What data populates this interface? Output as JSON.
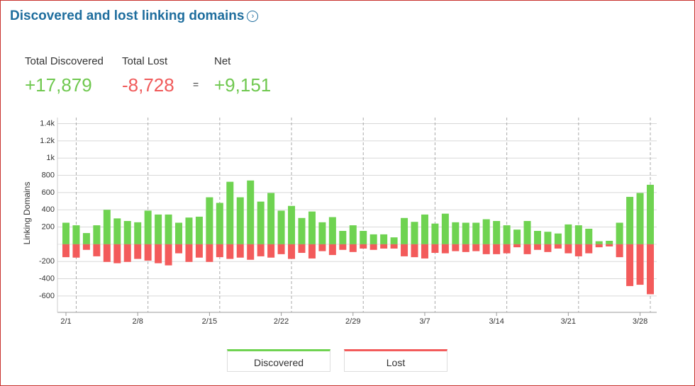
{
  "title": "Discovered and lost linking domains",
  "stats": [
    {
      "label": "Total Discovered",
      "value": "+17,879"
    },
    {
      "label": "Total Lost",
      "value": "-8,728"
    },
    {
      "label": "Net",
      "value": "+9,151"
    }
  ],
  "stats_operator": "=",
  "chart_data": {
    "type": "bar",
    "y_label": "Linking Domains",
    "categories": [
      "2/1",
      null,
      null,
      null,
      null,
      null,
      null,
      "2/8",
      null,
      null,
      null,
      null,
      null,
      null,
      "2/15",
      null,
      null,
      null,
      null,
      null,
      null,
      "2/22",
      null,
      null,
      null,
      null,
      null,
      null,
      "2/29",
      null,
      null,
      null,
      null,
      null,
      null,
      "3/7",
      null,
      null,
      null,
      null,
      null,
      null,
      "3/14",
      null,
      null,
      null,
      null,
      null,
      null,
      "3/21",
      null,
      null,
      null,
      null,
      null,
      null,
      "3/28",
      null
    ],
    "series": [
      {
        "name": "Discovered",
        "color": "#6fd351",
        "values": [
          250,
          220,
          130,
          220,
          400,
          300,
          270,
          255,
          390,
          345,
          345,
          250,
          310,
          320,
          545,
          480,
          725,
          545,
          740,
          495,
          595,
          390,
          445,
          305,
          380,
          255,
          315,
          155,
          220,
          155,
          115,
          115,
          80,
          305,
          260,
          345,
          240,
          355,
          255,
          250,
          250,
          290,
          270,
          220,
          170,
          270,
          155,
          145,
          125,
          230,
          220,
          180,
          35,
          40,
          250,
          550,
          595,
          690
        ]
      },
      {
        "name": "Lost",
        "color": "#f35b5b",
        "values": [
          -150,
          -155,
          -65,
          -140,
          -205,
          -220,
          -205,
          -170,
          -190,
          -220,
          -245,
          -105,
          -205,
          -155,
          -205,
          -150,
          -170,
          -155,
          -180,
          -140,
          -155,
          -115,
          -170,
          -100,
          -165,
          -80,
          -125,
          -65,
          -90,
          -50,
          -65,
          -50,
          -50,
          -140,
          -150,
          -165,
          -100,
          -105,
          -80,
          -90,
          -80,
          -115,
          -115,
          -105,
          -35,
          -115,
          -65,
          -90,
          -50,
          -105,
          -140,
          -105,
          -35,
          -25,
          -150,
          -485,
          -470,
          -580
        ]
      }
    ],
    "ylim": [
      -790,
      1470
    ],
    "yticks": [
      {
        "value": 1400,
        "label": "1.4k"
      },
      {
        "value": 1200,
        "label": "1.2k"
      },
      {
        "value": 1000,
        "label": "1k"
      },
      800,
      600,
      400,
      200,
      -200,
      -400,
      -600
    ],
    "grid": true
  }
}
